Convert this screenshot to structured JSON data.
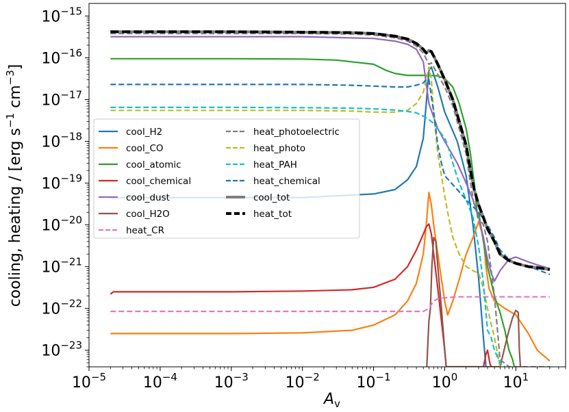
{
  "chart_data": {
    "type": "line",
    "xscale": "log",
    "yscale": "log",
    "xlim": [
      1e-05,
      50
    ],
    "ylim": [
      4e-24,
      2e-15
    ],
    "xlabel": "A",
    "xlabel_sub": "v",
    "ylabel": "cooling, heating / [erg s",
    "ylabel_exp1": "−1",
    "ylabel_mid": " cm",
    "ylabel_exp2": "−3",
    "ylabel_end": "]",
    "x_ticks": [
      {
        "base": "10",
        "exp": "−5",
        "value": 1e-05
      },
      {
        "base": "10",
        "exp": "−4",
        "value": 0.0001
      },
      {
        "base": "10",
        "exp": "−3",
        "value": 0.001
      },
      {
        "base": "10",
        "exp": "−2",
        "value": 0.01
      },
      {
        "base": "10",
        "exp": "−1",
        "value": 0.1
      },
      {
        "base": "10",
        "exp": "0",
        "value": 1
      },
      {
        "base": "10",
        "exp": "1",
        "value": 10
      }
    ],
    "y_ticks": [
      {
        "base": "10",
        "exp": "−23",
        "value": 1e-23
      },
      {
        "base": "10",
        "exp": "−22",
        "value": 1e-22
      },
      {
        "base": "10",
        "exp": "−21",
        "value": 1e-21
      },
      {
        "base": "10",
        "exp": "−20",
        "value": 1e-20
      },
      {
        "base": "10",
        "exp": "−19",
        "value": 1e-19
      },
      {
        "base": "10",
        "exp": "−18",
        "value": 1e-18
      },
      {
        "base": "10",
        "exp": "−17",
        "value": 1e-17
      },
      {
        "base": "10",
        "exp": "−16",
        "value": 1e-16
      },
      {
        "base": "10",
        "exp": "−15",
        "value": 1e-15
      }
    ],
    "grid": false,
    "legend_position": "center-left",
    "series": [
      {
        "name": "cool_H2",
        "color": "#1f77b4",
        "style": "solid",
        "x": [
          2e-05,
          0.0001,
          0.001,
          0.01,
          0.1,
          0.2,
          0.3,
          0.4,
          0.5,
          0.55,
          0.6,
          0.65,
          0.7,
          0.8,
          1.0,
          1.5,
          2.0,
          2.5,
          3.0,
          3.5,
          3.8
        ],
        "y": [
          4.5e-20,
          4.5e-20,
          4.5e-20,
          4.5e-20,
          5.5e-20,
          7e-20,
          1.2e-19,
          2.5e-19,
          1.2e-18,
          8e-18,
          5e-17,
          6e-17,
          4e-17,
          2e-17,
          5e-18,
          1e-18,
          1.5e-19,
          1e-20,
          5e-22,
          2e-23,
          4e-24
        ]
      },
      {
        "name": "cool_CO",
        "color": "#ff7f0e",
        "style": "solid",
        "x": [
          2e-05,
          0.0001,
          0.001,
          0.01,
          0.05,
          0.1,
          0.2,
          0.3,
          0.4,
          0.5,
          0.55,
          0.6,
          0.65,
          0.7,
          0.8,
          0.9,
          1.0,
          1.1,
          1.3,
          1.6,
          2.0,
          2.5,
          3.0,
          3.5,
          3.8,
          4.2,
          5.0,
          7.0,
          10,
          15,
          20,
          30
        ],
        "y": [
          2.5e-23,
          2.5e-23,
          2.5e-23,
          2.6e-23,
          3e-23,
          4e-23,
          7e-23,
          1.5e-22,
          4e-22,
          2e-21,
          1e-20,
          6e-20,
          3e-20,
          1e-20,
          2e-21,
          5e-22,
          1.5e-22,
          7e-23,
          1.5e-22,
          5e-22,
          2e-21,
          5e-21,
          1.2e-20,
          5e-21,
          1e-21,
          3e-22,
          1.5e-22,
          1e-22,
          7e-23,
          2.5e-23,
          1e-23,
          5.5e-24
        ]
      },
      {
        "name": "cool_atomic",
        "color": "#2ca02c",
        "style": "solid",
        "x": [
          2e-05,
          0.0001,
          0.001,
          0.01,
          0.03,
          0.1,
          0.15,
          0.2,
          0.3,
          0.5,
          0.8,
          1.0,
          1.3,
          1.6,
          2.0,
          2.3,
          2.6,
          2.9,
          3.0,
          3.2,
          3.5,
          4.0,
          5.0,
          6.0,
          7.0,
          8.0,
          9.0,
          9.5
        ],
        "y": [
          9.5e-17,
          9.5e-17,
          9.5e-17,
          9.3e-17,
          8.8e-17,
          7e-17,
          5e-17,
          4.2e-17,
          3.8e-17,
          3.8e-17,
          3.7e-17,
          3.2e-17,
          2e-17,
          8e-18,
          2e-18,
          5e-19,
          1e-19,
          1.5e-20,
          2e-20,
          1e-20,
          4e-21,
          1e-21,
          2e-22,
          8e-23,
          3e-23,
          1e-23,
          6e-24,
          4e-24
        ]
      },
      {
        "name": "cool_chemical",
        "color": "#d62728",
        "style": "solid",
        "x": [
          2e-05,
          2.2e-05,
          0.0001,
          0.001,
          0.01,
          0.05,
          0.1,
          0.2,
          0.3,
          0.4,
          0.5,
          0.55,
          0.6,
          0.65,
          0.7,
          0.8,
          0.9,
          1.0,
          1.05,
          3.5,
          3.8,
          4.0,
          4.3,
          4.5
        ],
        "y": [
          2.2e-22,
          2.5e-22,
          2.5e-22,
          2.5e-22,
          2.6e-22,
          2.8e-22,
          3.2e-22,
          5e-22,
          1e-21,
          2.5e-21,
          6e-21,
          9e-21,
          1.05e-20,
          6e-21,
          2e-21,
          3e-22,
          5e-23,
          1e-23,
          4e-24,
          4e-24,
          8e-24,
          1e-23,
          5e-24,
          4e-24
        ]
      },
      {
        "name": "cool_dust",
        "color": "#9467bd",
        "style": "solid",
        "x": [
          2e-05,
          0.0001,
          0.001,
          0.01,
          0.1,
          0.2,
          0.3,
          0.4,
          0.5,
          0.6,
          0.8,
          1.0,
          1.5,
          2.0,
          2.5,
          3.0,
          3.5,
          4.0,
          4.5,
          5.0,
          6.0,
          8.0,
          10,
          15,
          20,
          30
        ],
        "y": [
          3.2e-16,
          3.2e-16,
          3.2e-16,
          3.2e-16,
          2.9e-16,
          2.5e-16,
          2.1e-16,
          1.6e-16,
          8e-17,
          8e-18,
          2e-18,
          1e-18,
          3e-19,
          1e-19,
          4e-20,
          1.5e-20,
          5e-21,
          1.5e-21,
          7e-22,
          4.5e-22,
          8e-22,
          1.5e-21,
          1.7e-21,
          1.3e-21,
          1.1e-21,
          9e-22
        ]
      },
      {
        "name": "cool_H2O",
        "color": "#8c564b",
        "style": "solid",
        "x": [
          0.56,
          0.6,
          0.63,
          0.66,
          0.7,
          0.75,
          0.8,
          0.9,
          1.0,
          1.05,
          6.0,
          7.0,
          8.0,
          9.0,
          10,
          10.8,
          11.2,
          11.6
        ],
        "y": [
          4e-24,
          5e-23,
          1e-22,
          1e-21,
          5e-21,
          4e-21,
          1e-21,
          1e-22,
          1e-23,
          4e-24,
          4e-24,
          1.2e-23,
          3e-23,
          6e-23,
          9e-23,
          8e-23,
          1e-23,
          4e-24
        ]
      },
      {
        "name": "heat_CR",
        "color": "#e377c2",
        "style": "dashed",
        "x": [
          2e-05,
          0.0001,
          0.001,
          0.01,
          0.1,
          0.5,
          0.6,
          0.7,
          0.8,
          1.0,
          1.5,
          2.0,
          5.0,
          10,
          20,
          30
        ],
        "y": [
          8.5e-23,
          8.5e-23,
          8.5e-23,
          8.5e-23,
          8.5e-23,
          8.5e-23,
          1e-22,
          1.5e-22,
          1.7e-22,
          1.8e-22,
          1.9e-22,
          1.9e-22,
          1.9e-22,
          1.9e-22,
          1.9e-22,
          1.9e-22
        ]
      },
      {
        "name": "heat_photoelectric",
        "color": "#7f7f7f",
        "style": "dashed",
        "x": [
          2e-05,
          0.0001,
          0.001,
          0.01,
          0.05,
          0.1,
          0.2,
          0.3,
          0.4,
          0.5,
          0.6,
          0.65,
          0.7,
          0.8,
          1.0,
          1.3,
          1.6,
          2.0,
          2.3,
          2.6,
          3.0,
          3.5,
          4.0,
          5.0,
          6.0,
          8.0,
          10,
          15,
          20,
          30
        ],
        "y": [
          3.8e-16,
          3.8e-16,
          3.8e-16,
          3.8e-16,
          3.7e-16,
          3.5e-16,
          3e-16,
          2.5e-16,
          1.9e-16,
          1.3e-16,
          7e-17,
          7.5e-17,
          6e-17,
          4e-17,
          2e-17,
          7e-18,
          2e-18,
          5e-19,
          1e-19,
          3e-20,
          1.5e-20,
          1e-20,
          4e-21,
          2e-22,
          6e-24,
          4e-24,
          4e-24,
          4e-24,
          4e-24,
          4e-24
        ]
      },
      {
        "name": "heat_photo",
        "color": "#bcbd22",
        "style": "dashed",
        "x": [
          2e-05,
          0.0001,
          0.001,
          0.01,
          0.05,
          0.1,
          0.2,
          0.3,
          0.4,
          0.5,
          0.55,
          0.6,
          0.65,
          0.7,
          0.8,
          0.9,
          1.0,
          1.1,
          1.3,
          1.6,
          2.0,
          2.5,
          3.0,
          3.5,
          4.0,
          5.0,
          6.0
        ],
        "y": [
          5.5e-18,
          5.5e-18,
          5.5e-18,
          5.5e-18,
          5.3e-18,
          5e-18,
          5e-18,
          5.5e-18,
          8e-18,
          1.5e-17,
          3e-17,
          6e-17,
          3e-17,
          5e-18,
          5e-19,
          1.5e-19,
          5e-20,
          2e-20,
          5e-21,
          2e-21,
          1e-21,
          8e-22,
          7e-22,
          3e-22,
          1e-22,
          2e-23,
          4e-24
        ]
      },
      {
        "name": "heat_PAH",
        "color": "#17becf",
        "style": "dashed",
        "x": [
          2e-05,
          0.0001,
          0.001,
          0.01,
          0.05,
          0.1,
          0.2,
          0.3,
          0.4,
          0.5,
          0.6,
          0.7,
          0.8,
          0.9,
          1.0,
          1.1,
          1.3,
          1.6,
          2.0,
          2.5,
          3.0,
          3.5,
          4.0,
          4.5,
          5.0,
          6.0,
          7.0
        ],
        "y": [
          6.5e-18,
          6.5e-18,
          6.5e-18,
          6.4e-18,
          6.2e-18,
          6e-18,
          5.6e-18,
          5.2e-18,
          4.8e-18,
          4e-18,
          3.3e-18,
          2.7e-18,
          2e-18,
          1.5e-18,
          1.2e-18,
          8e-19,
          3e-19,
          1e-19,
          4e-20,
          1.5e-20,
          3e-21,
          4e-22,
          3e-23,
          2e-23,
          1e-23,
          5e-24,
          4e-24
        ]
      },
      {
        "name": "heat_chemical",
        "color": "#1f77b4",
        "style": "dashed",
        "x": [
          2e-05,
          0.0001,
          0.001,
          0.01,
          0.05,
          0.1,
          0.2,
          0.3,
          0.4,
          0.5,
          0.55,
          0.6,
          0.7,
          0.8,
          0.9,
          1.0,
          1.5,
          2.0,
          3.0,
          4.0,
          5.0,
          6.0,
          8.0,
          10,
          15,
          20,
          30
        ],
        "y": [
          2.3e-17,
          2.3e-17,
          2.3e-17,
          2.3e-17,
          2.2e-17,
          2.1e-17,
          2e-17,
          2e-17,
          2.2e-17,
          2.5e-17,
          3e-17,
          3e-17,
          5e-18,
          8e-19,
          3e-19,
          1.5e-19,
          7e-20,
          4e-20,
          2e-20,
          1e-20,
          5e-21,
          2.5e-21,
          1.5e-21,
          1.2e-21,
          1e-21,
          8.5e-22,
          6.5e-22
        ]
      },
      {
        "name": "cool_tot",
        "color": "#7f7f7f",
        "style": "solid",
        "x": [
          2e-05,
          0.0001,
          0.001,
          0.01,
          0.05,
          0.1,
          0.2,
          0.3,
          0.4,
          0.5,
          0.55,
          0.6,
          0.65,
          0.7,
          0.8,
          1.0,
          1.3,
          1.6,
          2.0,
          2.3,
          2.6,
          3.0,
          3.5,
          4.0,
          5.0,
          6.0,
          8.0,
          10,
          15,
          20,
          30
        ],
        "y": [
          4.2e-16,
          4.2e-16,
          4.2e-16,
          4.1e-16,
          4e-16,
          3.8e-16,
          3.3e-16,
          2.8e-16,
          2.2e-16,
          1.6e-16,
          1.3e-16,
          1.5e-16,
          1.4e-16,
          1.1e-16,
          7e-17,
          3e-17,
          1e-17,
          3e-18,
          8e-19,
          2e-19,
          7e-20,
          3e-20,
          1.5e-20,
          8e-21,
          4e-21,
          2e-21,
          1.4e-21,
          1.2e-21,
          1e-21,
          9.5e-22,
          8.5e-22
        ]
      },
      {
        "name": "heat_tot",
        "color": "#000000",
        "style": "dashed",
        "x": [
          2e-05,
          0.0001,
          0.001,
          0.01,
          0.05,
          0.1,
          0.2,
          0.3,
          0.4,
          0.5,
          0.55,
          0.6,
          0.65,
          0.7,
          0.8,
          1.0,
          1.3,
          1.6,
          2.0,
          2.3,
          2.6,
          3.0,
          3.5,
          4.0,
          5.0,
          6.0,
          8.0,
          10,
          15,
          20,
          30
        ],
        "y": [
          4.2e-16,
          4.2e-16,
          4.2e-16,
          4.1e-16,
          4e-16,
          3.8e-16,
          3.3e-16,
          2.8e-16,
          2.2e-16,
          1.6e-16,
          1.3e-16,
          1.5e-16,
          1.4e-16,
          1.1e-16,
          7e-17,
          3e-17,
          1e-17,
          3e-18,
          8e-19,
          2e-19,
          7e-20,
          3e-20,
          1.5e-20,
          8e-21,
          4e-21,
          2e-21,
          1.4e-21,
          1.2e-21,
          1e-21,
          9.5e-22,
          8.5e-22
        ]
      }
    ]
  }
}
